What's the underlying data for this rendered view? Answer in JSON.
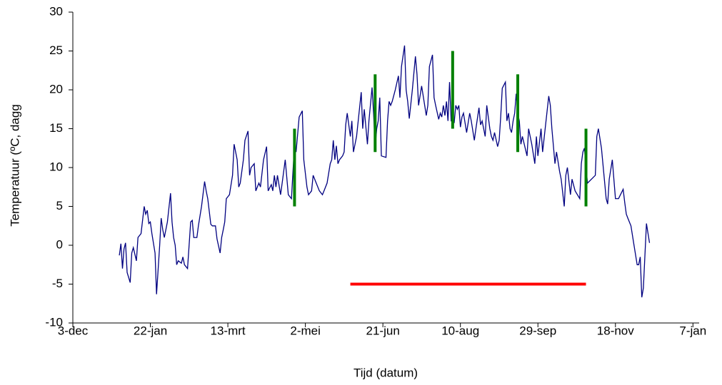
{
  "chart_data": {
    "type": "line",
    "xlabel": "Tijd (datum)",
    "ylabel": "Temperatuur (ºC, dagg",
    "xlim": [
      0,
      404
    ],
    "ylim": [
      -10,
      30
    ],
    "xticks": [
      {
        "value": 0,
        "label": "3-dec"
      },
      {
        "value": 50,
        "label": "22-jan"
      },
      {
        "value": 100,
        "label": "13-mrt"
      },
      {
        "value": 150,
        "label": "2-mei"
      },
      {
        "value": 200,
        "label": "21-jun"
      },
      {
        "value": 250,
        "label": "10-aug"
      },
      {
        "value": 300,
        "label": "29-sep"
      },
      {
        "value": 350,
        "label": "18-nov"
      },
      {
        "value": 400,
        "label": "7-jan"
      }
    ],
    "yticks": [
      -10,
      -5,
      0,
      5,
      10,
      15,
      20,
      25,
      30
    ],
    "grid": false,
    "series": [
      {
        "color": "#000080",
        "x": [
          30,
          31,
          32,
          33,
          34,
          35,
          37,
          38,
          39,
          41,
          42,
          44,
          46,
          47,
          48,
          49,
          50,
          51,
          53,
          54,
          56,
          57,
          58,
          59,
          61,
          63,
          64,
          65,
          66,
          67,
          68,
          70,
          71,
          72,
          74,
          75,
          76,
          77,
          78,
          80,
          81,
          83,
          85,
          86,
          87,
          89,
          90,
          92,
          93,
          95,
          96,
          97,
          98,
          99,
          101,
          103,
          104,
          106,
          107,
          108,
          110,
          111,
          113,
          114,
          115,
          117,
          118,
          120,
          121,
          123,
          125,
          126,
          128,
          129,
          130,
          131,
          132,
          134,
          135,
          137,
          139,
          141,
          143,
          144,
          146,
          148,
          149,
          151,
          152,
          154,
          155,
          157,
          159,
          161,
          162,
          164,
          166,
          167,
          168,
          169,
          170,
          171,
          172,
          174,
          175,
          176,
          177,
          179,
          180,
          181,
          183,
          186,
          187,
          188,
          190,
          191,
          193,
          194,
          195,
          196,
          197,
          198,
          199,
          202,
          203,
          204,
          205,
          206,
          208,
          210,
          211,
          212,
          214,
          215,
          216,
          217,
          219,
          221,
          222,
          223,
          225,
          228,
          229,
          230,
          232,
          233,
          234,
          236,
          237,
          238,
          239,
          240,
          241,
          242,
          243,
          244,
          246,
          247,
          248,
          249,
          250,
          251,
          252,
          254,
          256,
          257,
          259,
          260,
          262,
          263,
          264,
          266,
          267,
          269,
          270,
          271,
          272,
          274,
          275,
          276,
          277,
          279,
          280,
          281,
          282,
          283,
          284,
          285,
          286,
          287,
          288,
          289,
          290,
          293,
          294,
          296,
          298,
          299,
          300,
          302,
          303,
          307,
          308,
          309,
          311,
          312,
          314,
          315,
          317,
          318,
          319,
          321,
          322,
          324,
          327,
          328,
          329,
          330,
          331,
          332,
          337,
          338,
          339,
          341,
          344,
          345,
          346,
          348,
          350,
          352,
          355,
          356,
          357,
          358,
          360,
          362,
          364,
          365,
          366,
          367,
          368,
          370,
          372
        ],
        "values": [
          -1.3,
          0.2,
          -3,
          -0.5,
          0.3,
          -3.5,
          -4.8,
          -1,
          -0.3,
          -2,
          1,
          1.5,
          5,
          4,
          4.5,
          2.8,
          3,
          1.5,
          -1,
          -6.3,
          0,
          3.5,
          2,
          1,
          3,
          6.7,
          3,
          1,
          0,
          -2.5,
          -2,
          -2.3,
          -1.5,
          -2.5,
          -3,
          0,
          3,
          3.2,
          1,
          1,
          2.5,
          5,
          8.2,
          7,
          6,
          2.7,
          2.5,
          2.5,
          0.8,
          -1,
          1,
          2,
          3,
          6,
          6.5,
          9,
          13,
          11,
          7.5,
          8,
          11,
          13.5,
          14.7,
          9,
          10,
          10.5,
          7,
          8,
          7.5,
          11,
          12.7,
          7,
          7.8,
          7,
          9,
          7.5,
          9,
          6.5,
          8,
          11,
          6.5,
          6,
          13,
          12,
          16.5,
          17.3,
          11,
          7.5,
          6.5,
          7,
          9,
          8,
          7,
          6.5,
          7,
          8,
          10.5,
          11,
          13.5,
          11,
          12.8,
          10.5,
          11,
          11.5,
          12,
          15.5,
          17,
          14,
          16,
          12,
          14,
          19.7,
          15,
          17.5,
          13,
          16,
          20.3,
          17,
          12.6,
          15,
          16,
          19,
          11.5,
          11.3,
          16,
          18.5,
          18,
          18.5,
          20,
          21.8,
          19,
          23,
          25.7,
          20,
          18.5,
          16.3,
          20,
          24.3,
          22,
          18,
          20.5,
          16.7,
          18,
          23,
          24.5,
          19,
          18,
          16.2,
          17,
          16.5,
          18,
          16.7,
          18.5,
          16,
          21,
          16,
          15.8,
          18,
          17.5,
          18,
          15.2,
          16.5,
          17,
          14.5,
          17,
          16,
          13.5,
          15,
          17.7,
          15.5,
          16,
          14,
          18,
          15,
          14,
          13.5,
          14.5,
          12.7,
          13.5,
          16.5,
          20.2,
          21,
          16,
          17,
          15,
          14.5,
          16,
          17,
          19.5,
          17,
          16,
          13,
          14,
          11.5,
          15,
          13,
          10.5,
          14,
          11.5,
          15,
          12,
          19.2,
          18,
          15,
          10.5,
          12,
          9.5,
          8.5,
          5,
          9,
          10,
          6.5,
          8.5,
          7,
          6,
          10.5,
          12,
          12.5,
          10,
          8,
          9,
          14,
          15,
          12.5,
          6,
          5.3,
          8.5,
          11,
          6,
          6,
          7.2,
          5.5,
          4,
          3.5,
          2.5,
          0,
          -2.5,
          -2.5,
          -1.5,
          -6.7,
          -5.5,
          2.8,
          0.3
        ]
      }
    ],
    "bars": {
      "color": "#008000",
      "x": [
        143,
        195,
        245,
        287,
        331
      ],
      "low": [
        5,
        12,
        15,
        12,
        5
      ],
      "high": [
        15,
        22,
        25,
        22,
        15
      ]
    },
    "hline": {
      "color": "#ff0000",
      "y": -5,
      "x": [
        179,
        331
      ]
    }
  }
}
